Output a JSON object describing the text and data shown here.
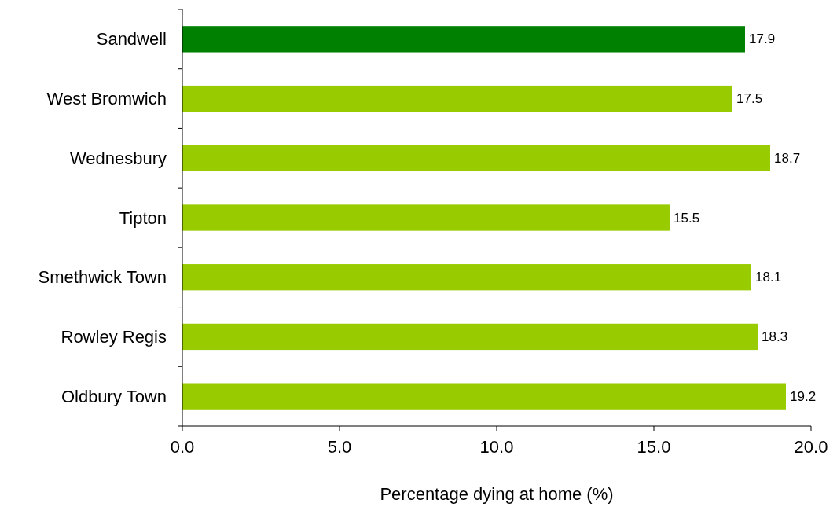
{
  "chart_data": {
    "type": "bar",
    "orientation": "horizontal",
    "xlabel": "Percentage dying at home (%)",
    "categories": [
      "Sandwell",
      "West Bromwich",
      "Wednesbury",
      "Tipton",
      "Smethwick Town",
      "Rowley Regis",
      "Oldbury Town"
    ],
    "values": [
      17.9,
      17.5,
      18.7,
      15.5,
      18.1,
      18.3,
      19.2
    ],
    "colors": [
      "#008000",
      "#99cc00",
      "#99cc00",
      "#99cc00",
      "#99cc00",
      "#99cc00",
      "#99cc00"
    ],
    "xlim": [
      0,
      20
    ],
    "xticks": [
      {
        "value": 0,
        "label": "0.0"
      },
      {
        "value": 5,
        "label": "5.0"
      },
      {
        "value": 10,
        "label": "10.0"
      },
      {
        "value": 15,
        "label": "15.0"
      },
      {
        "value": 20,
        "label": "20.0"
      }
    ],
    "data_labels": true
  }
}
